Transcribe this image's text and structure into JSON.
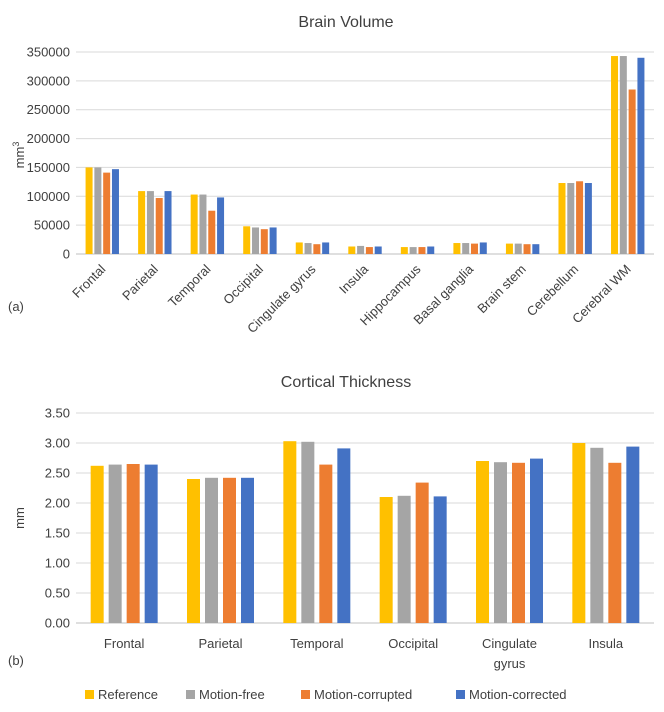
{
  "series_colors": [
    "#FFC000",
    "#A5A5A5",
    "#ED7D31",
    "#4472C4"
  ],
  "legend": [
    "Reference",
    "Motion-free",
    "Motion-corrupted",
    "Motion-corrected"
  ],
  "chart_data": [
    {
      "type": "bar",
      "panel_label": "(a)",
      "title": "Brain Volume",
      "xlabel": "",
      "ylabel": "mm",
      "ylabel_sup": "3",
      "ylim": [
        0,
        350000
      ],
      "yticks": [
        "0",
        "50000",
        "100000",
        "150000",
        "200000",
        "250000",
        "300000",
        "350000"
      ],
      "grid": true,
      "categories": [
        "Frontal",
        "Parietal",
        "Temporal",
        "Occipital",
        "Cingulate gyrus",
        "Insula",
        "Hippocampus",
        "Basal ganglia",
        "Brain stem",
        "Cerebellum",
        "Cerebral WM"
      ],
      "series": [
        {
          "name": "Reference",
          "values": [
            150000,
            109000,
            103000,
            48000,
            20000,
            13000,
            12000,
            19000,
            18000,
            123000,
            343000
          ]
        },
        {
          "name": "Motion-free",
          "values": [
            150000,
            109000,
            103000,
            46000,
            19000,
            14000,
            12000,
            19000,
            18000,
            123000,
            343000
          ]
        },
        {
          "name": "Motion-corrupted",
          "values": [
            141000,
            97000,
            75000,
            43000,
            17000,
            12000,
            12000,
            18000,
            17000,
            126000,
            285000
          ]
        },
        {
          "name": "Motion-corrected",
          "values": [
            147000,
            109000,
            98000,
            46000,
            20000,
            13000,
            13000,
            20000,
            17000,
            123000,
            340000
          ]
        }
      ]
    },
    {
      "type": "bar",
      "panel_label": "(b)",
      "title": "Cortical Thickness",
      "xlabel": "",
      "ylabel": "mm",
      "ylim": [
        0,
        3.5
      ],
      "yticks": [
        "0.00",
        "0.50",
        "1.00",
        "1.50",
        "2.00",
        "2.50",
        "3.00",
        "3.50"
      ],
      "grid": true,
      "categories": [
        "Frontal",
        "Parietal",
        "Temporal",
        "Occipital",
        "Cingulate gyrus",
        "Insula"
      ],
      "category_lines": [
        [
          "Frontal"
        ],
        [
          "Parietal"
        ],
        [
          "Temporal"
        ],
        [
          "Occipital"
        ],
        [
          "Cingulate",
          "gyrus"
        ],
        [
          "Insula"
        ]
      ],
      "series": [
        {
          "name": "Reference",
          "values": [
            2.62,
            2.4,
            3.03,
            2.1,
            2.7,
            3.0
          ]
        },
        {
          "name": "Motion-free",
          "values": [
            2.64,
            2.42,
            3.02,
            2.12,
            2.68,
            2.92
          ]
        },
        {
          "name": "Motion-corrupted",
          "values": [
            2.65,
            2.42,
            2.64,
            2.34,
            2.67,
            2.67
          ]
        },
        {
          "name": "Motion-corrected",
          "values": [
            2.64,
            2.42,
            2.91,
            2.11,
            2.74,
            2.94
          ]
        }
      ]
    }
  ]
}
